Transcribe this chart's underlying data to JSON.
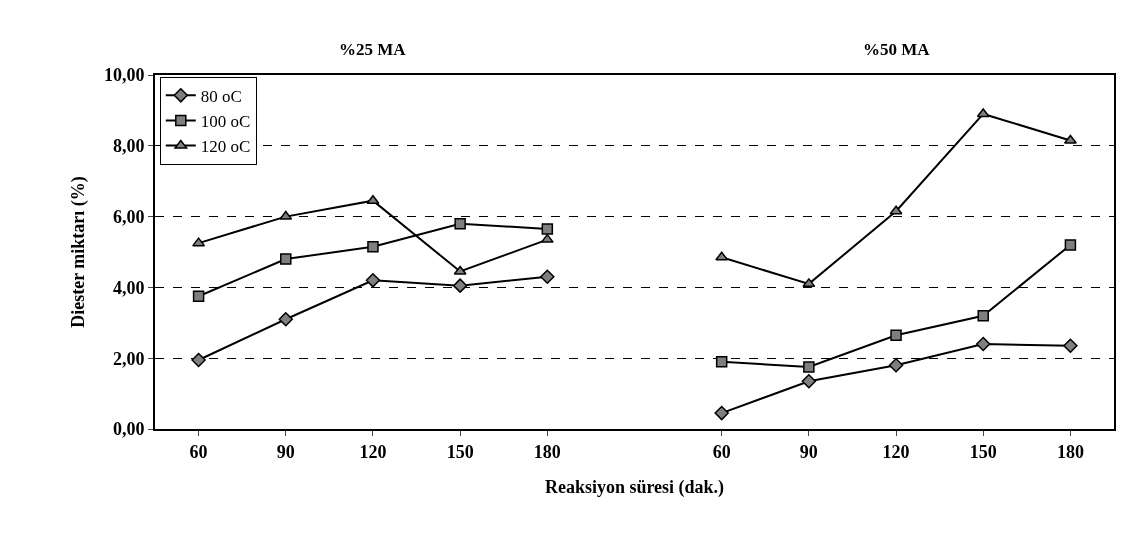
{
  "chart_data": {
    "type": "line",
    "categories": [
      "60",
      "90",
      "120",
      "150",
      "180",
      null,
      "60",
      "90",
      "120",
      "150",
      "180"
    ],
    "xlabel": "Reaksiyon süresi (dak.)",
    "ylabel": "Diester miktarı (%)",
    "annotations": [
      "%25 MA",
      "%50 MA"
    ],
    "series": [
      {
        "name": "80 oC",
        "color": "#000000",
        "marker": "diamond",
        "values": [
          1.95,
          3.1,
          4.2,
          4.05,
          4.3,
          null,
          0.45,
          1.35,
          1.8,
          2.4,
          2.35
        ]
      },
      {
        "name": "100 oC",
        "color": "#000000",
        "marker": "square",
        "values": [
          3.75,
          4.8,
          5.15,
          5.8,
          5.65,
          null,
          1.9,
          1.75,
          2.65,
          3.2,
          5.2
        ]
      },
      {
        "name": "120 oC",
        "color": "#000000",
        "marker": "triangle",
        "values": [
          5.25,
          6.0,
          6.45,
          4.45,
          5.35,
          null,
          4.85,
          4.1,
          6.15,
          8.9,
          8.15
        ]
      }
    ],
    "ylim": [
      0,
      10
    ],
    "yticks": [
      {
        "value": 0,
        "label": "0,00"
      },
      {
        "value": 2,
        "label": "2,00"
      },
      {
        "value": 4,
        "label": "4,00"
      },
      {
        "value": 6,
        "label": "6,00"
      },
      {
        "value": 8,
        "label": "8,00"
      },
      {
        "value": 10,
        "label": "10,00"
      }
    ],
    "grid": "y",
    "legend": "top left",
    "line_style": "solid"
  }
}
